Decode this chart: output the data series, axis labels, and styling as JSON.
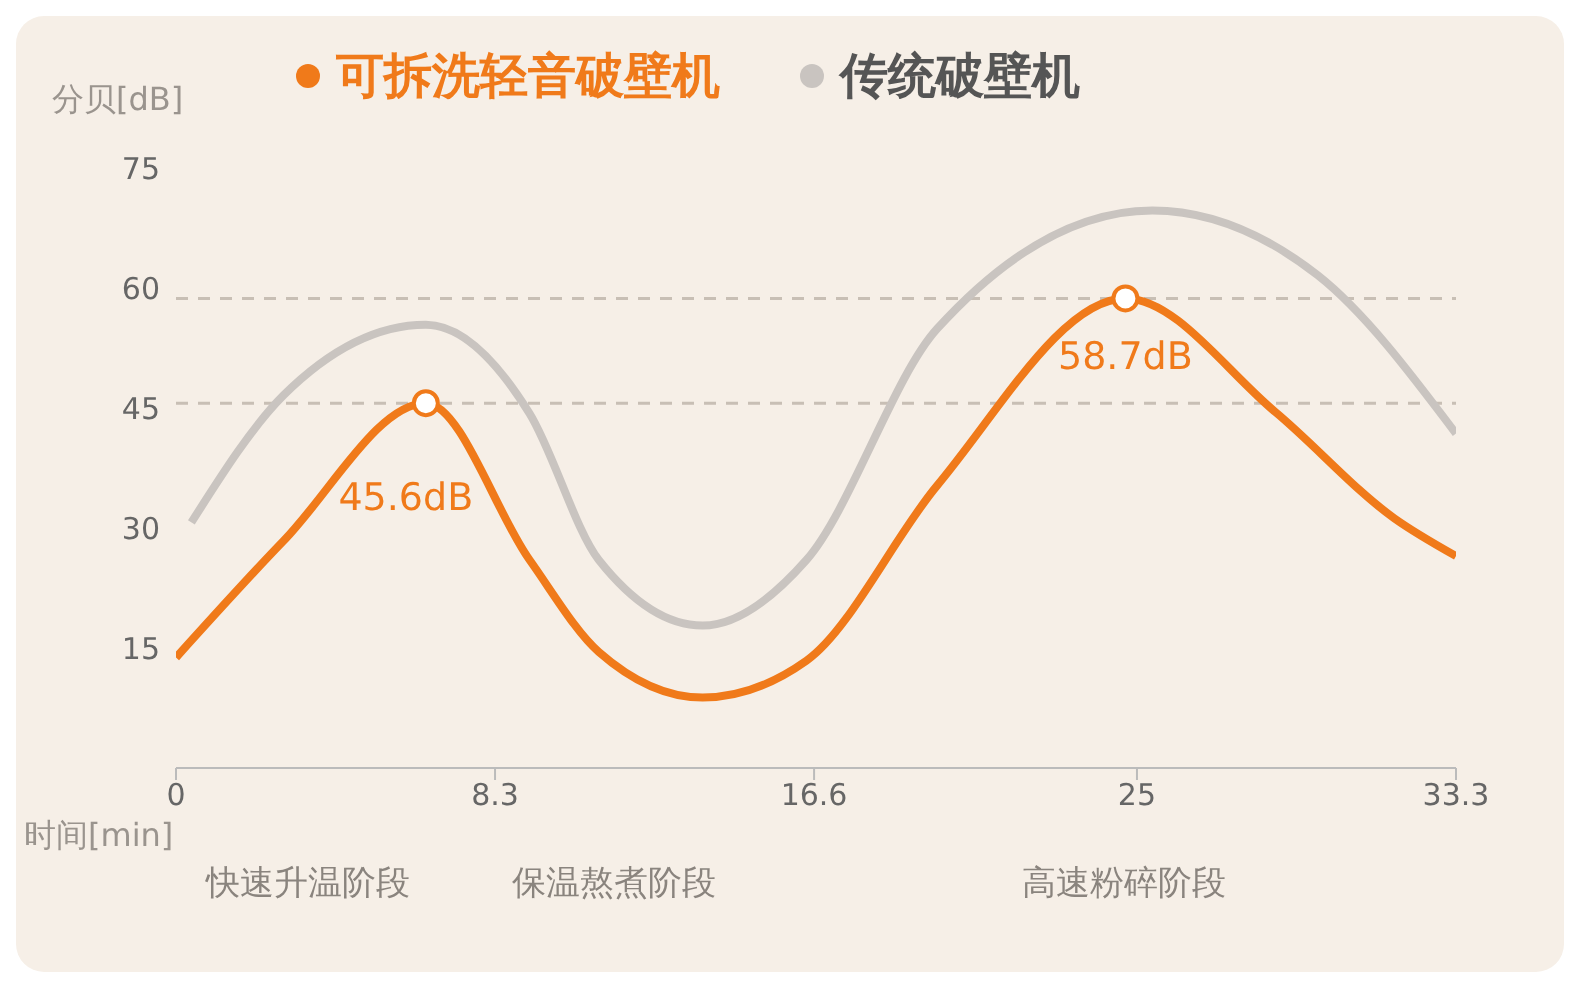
{
  "chart_data": {
    "type": "line",
    "xlabel": "时间[min]",
    "ylabel": "分贝[dB]",
    "xlim": [
      0,
      33.3
    ],
    "xticks": [
      0,
      8.3,
      16.6,
      25,
      33.3
    ],
    "ylim": [
      0,
      75
    ],
    "yticks": [
      15,
      30,
      45,
      60,
      75
    ],
    "series": [
      {
        "name": "可拆洗轻音破壁机",
        "color": "#f07a1a",
        "x": [
          0,
          2.8,
          6.5,
          9.2,
          11,
          13.7,
          16.4,
          19.8,
          24.7,
          28.6,
          31.7,
          33.3
        ],
        "values": [
          13.8,
          28.4,
          45.6,
          26,
          14.5,
          8.8,
          13.4,
          35.3,
          58.7,
          44.5,
          31.2,
          26.5
        ]
      },
      {
        "name": "传统破壁机",
        "color": "#c9c4c0",
        "x": [
          0.4,
          2.8,
          6.5,
          9.2,
          11,
          13.7,
          16.4,
          19.8,
          25.4,
          29.7,
          33.3
        ],
        "values": [
          30.7,
          46.6,
          55.4,
          44.3,
          26,
          17.8,
          26,
          54.9,
          69.7,
          61.6,
          41.8
        ]
      }
    ],
    "ref_lines": [
      {
        "axis": "y",
        "value": 58.7,
        "color": "#c8bfb5",
        "line_style": "dashed"
      },
      {
        "axis": "y",
        "value": 45.6,
        "color": "#c8bfb5",
        "line_style": "dashed"
      }
    ],
    "marker": "none",
    "line_style": "solid",
    "legend": "top",
    "annotations": [
      {
        "text": "45.6dB",
        "x": 6.5,
        "y": 45.6
      },
      {
        "text": "58.7dB",
        "x": 24.7,
        "y": 58.7
      },
      "快速升温阶段",
      "保温熬煮阶段",
      "高速粉碎阶段"
    ]
  }
}
